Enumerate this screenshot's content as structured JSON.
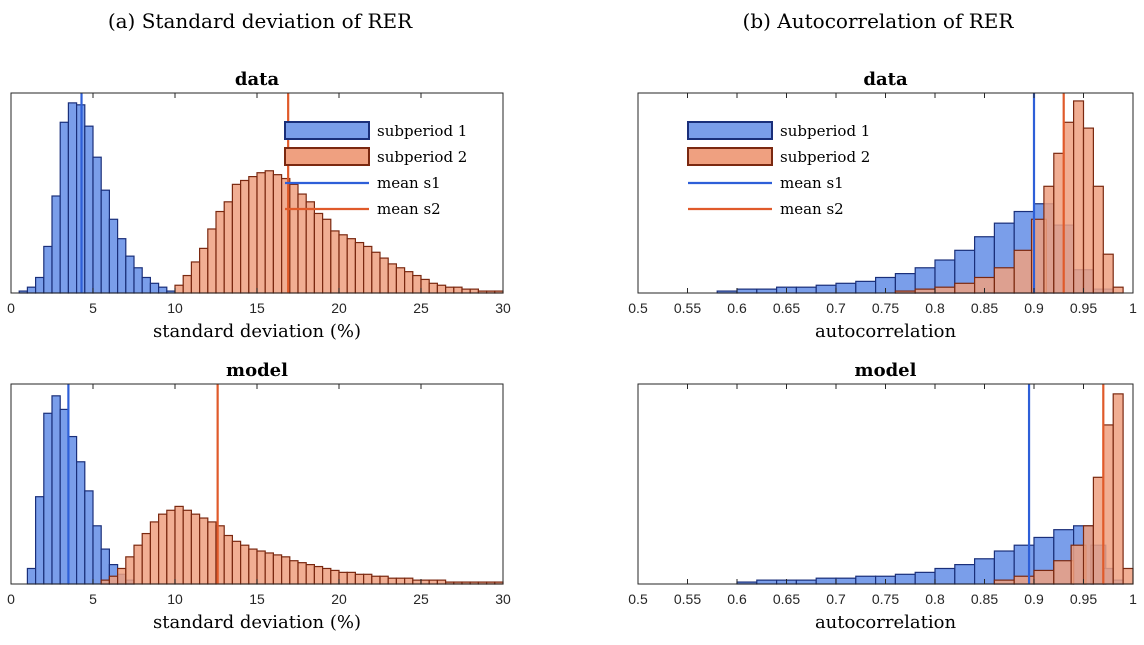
{
  "figure": {
    "col_titles": [
      "(a) Standard deviation of RER",
      "(b) Autocorrelation of RER"
    ]
  },
  "colors": {
    "s1_fill": "#7A9EEA",
    "s1_edge": "#1A2F7A",
    "s2_fill": "#EFA080",
    "s2_edge": "#7A2810",
    "mean_s1": "#2E5FD8",
    "mean_s2": "#E05A2A"
  },
  "legend": {
    "s1": "subperiod 1",
    "s2": "subperiod 2",
    "m1": "mean s1",
    "m2": "mean s2"
  },
  "chart_data": [
    {
      "type": "bar",
      "title": "data",
      "xlabel": "standard deviation (%)",
      "xlim": [
        0,
        30
      ],
      "xticks": [
        0,
        5,
        10,
        15,
        20,
        25,
        30
      ],
      "ylim": [
        0,
        1
      ],
      "legend": "top-right",
      "series": [
        {
          "name": "subperiod 1",
          "x": [
            0.75,
            1.25,
            1.75,
            2.25,
            2.75,
            3.25,
            3.75,
            4.25,
            4.75,
            5.25,
            5.75,
            6.25,
            6.75,
            7.25,
            7.75,
            8.25,
            8.75,
            9.25,
            9.75
          ],
          "values": [
            0.01,
            0.03,
            0.08,
            0.24,
            0.5,
            0.88,
            0.98,
            0.97,
            0.86,
            0.7,
            0.53,
            0.38,
            0.28,
            0.19,
            0.13,
            0.08,
            0.05,
            0.03,
            0.01
          ]
        },
        {
          "name": "subperiod 2",
          "x": [
            10.25,
            10.75,
            11.25,
            11.75,
            12.25,
            12.75,
            13.25,
            13.75,
            14.25,
            14.75,
            15.25,
            15.75,
            16.25,
            16.75,
            17.25,
            17.75,
            18.25,
            18.75,
            19.25,
            19.75,
            20.25,
            20.75,
            21.25,
            21.75,
            22.25,
            22.75,
            23.25,
            23.75,
            24.25,
            24.75,
            25.25,
            25.75,
            26.25,
            26.75,
            27.25,
            27.75,
            28.25,
            28.75,
            29.25,
            29.75
          ],
          "values": [
            0.04,
            0.09,
            0.16,
            0.23,
            0.33,
            0.42,
            0.47,
            0.56,
            0.58,
            0.6,
            0.62,
            0.63,
            0.61,
            0.59,
            0.56,
            0.51,
            0.47,
            0.41,
            0.38,
            0.32,
            0.3,
            0.28,
            0.26,
            0.24,
            0.21,
            0.18,
            0.15,
            0.13,
            0.11,
            0.09,
            0.07,
            0.05,
            0.04,
            0.03,
            0.03,
            0.02,
            0.02,
            0.01,
            0.01,
            0.01
          ]
        }
      ],
      "means": [
        4.3,
        16.9
      ]
    },
    {
      "type": "bar",
      "title": "data",
      "xlabel": "autocorrelation",
      "xlim": [
        0.5,
        1
      ],
      "xticks": [
        0.5,
        0.55,
        0.6,
        0.65,
        0.7,
        0.75,
        0.8,
        0.85,
        0.9,
        0.95,
        1
      ],
      "ylim": [
        0,
        1
      ],
      "legend": "top-left",
      "series": [
        {
          "name": "subperiod 1",
          "x": [
            0.59,
            0.61,
            0.63,
            0.65,
            0.67,
            0.69,
            0.71,
            0.73,
            0.75,
            0.77,
            0.79,
            0.81,
            0.83,
            0.85,
            0.87,
            0.89,
            0.91,
            0.93,
            0.95,
            0.97
          ],
          "values": [
            0.01,
            0.02,
            0.02,
            0.03,
            0.03,
            0.04,
            0.05,
            0.06,
            0.08,
            0.1,
            0.13,
            0.17,
            0.22,
            0.29,
            0.36,
            0.42,
            0.46,
            0.35,
            0.12,
            0.02
          ]
        },
        {
          "name": "subperiod 2",
          "x": [
            0.77,
            0.79,
            0.81,
            0.83,
            0.85,
            0.87,
            0.89,
            0.905,
            0.915,
            0.925,
            0.935,
            0.945,
            0.955,
            0.965,
            0.975,
            0.985
          ],
          "values": [
            0.01,
            0.02,
            0.03,
            0.05,
            0.08,
            0.13,
            0.22,
            0.38,
            0.55,
            0.72,
            0.88,
            0.99,
            0.85,
            0.55,
            0.2,
            0.03
          ]
        }
      ],
      "means": [
        0.9,
        0.93
      ]
    },
    {
      "type": "bar",
      "title": "model",
      "xlabel": "standard deviation (%)",
      "xlim": [
        0,
        30
      ],
      "xticks": [
        0,
        5,
        10,
        15,
        20,
        25,
        30
      ],
      "ylim": [
        0,
        1
      ],
      "series": [
        {
          "name": "subperiod 1",
          "x": [
            1.25,
            1.75,
            2.25,
            2.75,
            3.25,
            3.75,
            4.25,
            4.75,
            5.25,
            5.75,
            6.25,
            6.75,
            7.25
          ],
          "values": [
            0.08,
            0.45,
            0.88,
            0.97,
            0.9,
            0.76,
            0.63,
            0.48,
            0.3,
            0.18,
            0.1,
            0.05,
            0.02
          ]
        },
        {
          "name": "subperiod 2",
          "x": [
            5.75,
            6.25,
            6.75,
            7.25,
            7.75,
            8.25,
            8.75,
            9.25,
            9.75,
            10.25,
            10.75,
            11.25,
            11.75,
            12.25,
            12.75,
            13.25,
            13.75,
            14.25,
            14.75,
            15.25,
            15.75,
            16.25,
            16.75,
            17.25,
            17.75,
            18.25,
            18.75,
            19.25,
            19.75,
            20.25,
            20.75,
            21.25,
            21.75,
            22.25,
            22.75,
            23.25,
            23.75,
            24.25,
            24.75,
            25.25,
            25.75,
            26.25,
            26.75,
            27.25,
            27.75,
            28.25,
            28.75,
            29.25,
            29.75
          ],
          "values": [
            0.02,
            0.04,
            0.08,
            0.14,
            0.2,
            0.26,
            0.32,
            0.36,
            0.38,
            0.4,
            0.38,
            0.36,
            0.34,
            0.32,
            0.3,
            0.25,
            0.22,
            0.2,
            0.18,
            0.17,
            0.16,
            0.15,
            0.14,
            0.12,
            0.11,
            0.1,
            0.09,
            0.08,
            0.07,
            0.06,
            0.06,
            0.05,
            0.05,
            0.04,
            0.04,
            0.03,
            0.03,
            0.03,
            0.02,
            0.02,
            0.02,
            0.02,
            0.01,
            0.01,
            0.01,
            0.01,
            0.01,
            0.01,
            0.01
          ]
        }
      ],
      "means": [
        3.5,
        12.6
      ]
    },
    {
      "type": "bar",
      "title": "model",
      "xlabel": "autocorrelation",
      "xlim": [
        0.5,
        1
      ],
      "xticks": [
        0.5,
        0.55,
        0.6,
        0.65,
        0.7,
        0.75,
        0.8,
        0.85,
        0.9,
        0.95,
        1
      ],
      "ylim": [
        0,
        1
      ],
      "series": [
        {
          "name": "subperiod 1",
          "x": [
            0.61,
            0.63,
            0.65,
            0.67,
            0.69,
            0.71,
            0.73,
            0.75,
            0.77,
            0.79,
            0.81,
            0.83,
            0.85,
            0.87,
            0.89,
            0.91,
            0.93,
            0.95,
            0.965,
            0.975,
            0.985
          ],
          "values": [
            0.01,
            0.02,
            0.02,
            0.02,
            0.03,
            0.03,
            0.04,
            0.04,
            0.05,
            0.06,
            0.08,
            0.1,
            0.13,
            0.17,
            0.2,
            0.24,
            0.28,
            0.3,
            0.2,
            0.08,
            0.02
          ]
        },
        {
          "name": "subperiod 2",
          "x": [
            0.87,
            0.89,
            0.91,
            0.93,
            0.945,
            0.955,
            0.965,
            0.975,
            0.985,
            0.995
          ],
          "values": [
            0.02,
            0.04,
            0.07,
            0.12,
            0.2,
            0.3,
            0.55,
            0.82,
            0.98,
            0.08
          ]
        }
      ],
      "means": [
        0.895,
        0.97
      ]
    }
  ]
}
